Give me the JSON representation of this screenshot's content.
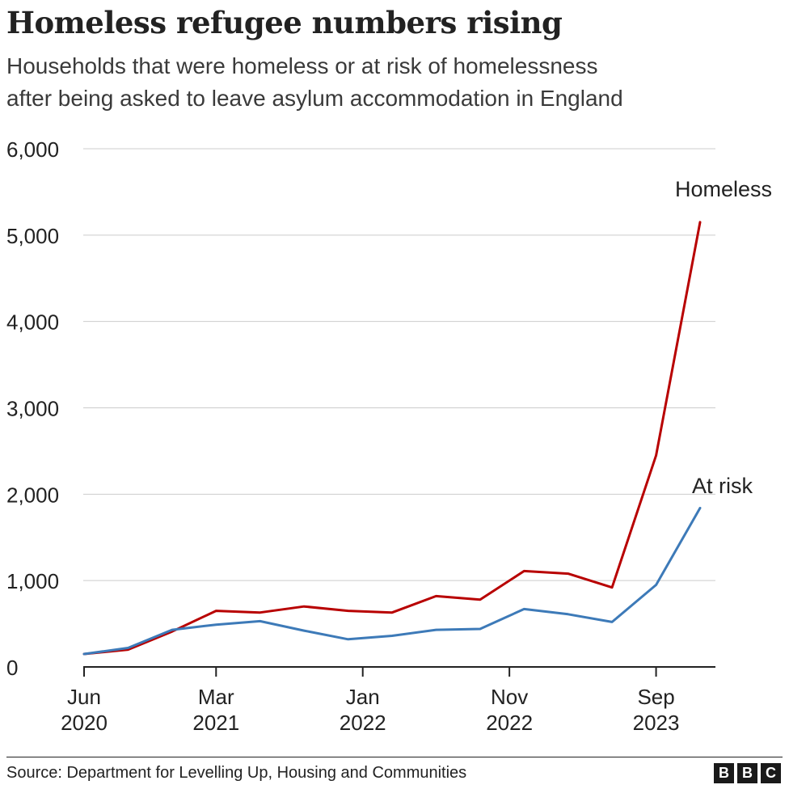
{
  "header": {
    "title": "Homeless refugee numbers rising",
    "subtitle_line1": "Households that were homeless or at risk of homelessness",
    "subtitle_line2": "after being asked to leave asylum accommodation in England"
  },
  "footer": {
    "source": "Source: Department for Levelling Up, Housing and Communities",
    "logo_letters": [
      "B",
      "B",
      "C"
    ]
  },
  "chart_data": {
    "type": "line",
    "title": "Homeless refugee numbers rising",
    "subtitle": "Households that were homeless or at risk of homelessness after being asked to leave asylum accommodation in England",
    "xlabel": "",
    "ylabel": "",
    "x": [
      "2020-06",
      "2020-09",
      "2020-12",
      "2021-03",
      "2021-06",
      "2021-09",
      "2021-12",
      "2022-03",
      "2022-06",
      "2022-09",
      "2022-12",
      "2023-03",
      "2023-06",
      "2023-09",
      "2023-12"
    ],
    "x_ticks": [
      {
        "x": "2020-06",
        "label": [
          "Jun",
          "2020"
        ]
      },
      {
        "x": "2021-03",
        "label": [
          "Mar",
          "2021"
        ]
      },
      {
        "x": "2022-01",
        "label": [
          "Jan",
          "2022"
        ]
      },
      {
        "x": "2022-11",
        "label": [
          "Nov",
          "2022"
        ]
      },
      {
        "x": "2023-09",
        "label": [
          "Sep",
          "2023"
        ]
      }
    ],
    "y_ticks": [
      0,
      1000,
      2000,
      3000,
      4000,
      5000,
      6000
    ],
    "y_tick_labels": [
      "0",
      "1,000",
      "2,000",
      "3,000",
      "4,000",
      "5,000",
      "6,000"
    ],
    "ylim": [
      0,
      6000
    ],
    "grid": "horizontal",
    "legend": "direct labels at line ends",
    "series": [
      {
        "name": "Homeless",
        "color": "#b80000",
        "values": [
          150,
          200,
          410,
          650,
          630,
          700,
          650,
          630,
          820,
          780,
          1110,
          1080,
          920,
          2450,
          5150
        ]
      },
      {
        "name": "At risk",
        "color": "#3d7ab8",
        "values": [
          150,
          220,
          430,
          490,
          530,
          420,
          320,
          360,
          430,
          440,
          670,
          610,
          520,
          950,
          1840
        ]
      }
    ]
  }
}
